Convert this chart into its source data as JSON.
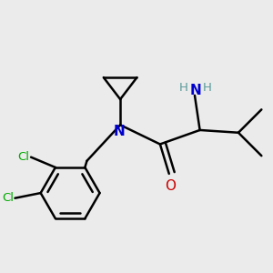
{
  "bg_color": "#ebebeb",
  "bond_color": "#000000",
  "bond_width": 1.8,
  "N_color": "#0000cc",
  "O_color": "#cc0000",
  "Cl_color": "#00aa00",
  "H_color": "#5a9a9a",
  "fig_width": 3.0,
  "fig_height": 3.0,
  "dpi": 100,
  "xlim": [
    0.0,
    1.0
  ],
  "ylim": [
    0.0,
    1.0
  ]
}
